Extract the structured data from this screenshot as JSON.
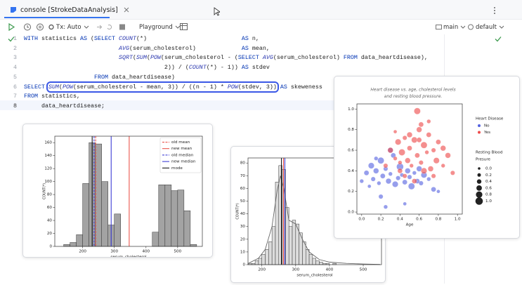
{
  "tab": {
    "title": "console [StrokeDataAnalysis]"
  },
  "toolbar": {
    "tx": "Tx: Auto",
    "schema": "Playground",
    "branch": "main",
    "connection": "default"
  },
  "editor": {
    "lines": [
      {
        "number": 1,
        "segments": [
          "WITH statistics AS (SELECT COUNT(*)                           AS n,"
        ]
      },
      {
        "number": 2,
        "segments": [
          "                           AVG(serum_cholesterol)             AS mean,"
        ]
      },
      {
        "number": 3,
        "segments": [
          "                           SQRT(SUM(POW(serum_cholesterol - (SELECT AVG(serum_cholesterol) FROM data_heartdisease),"
        ]
      },
      {
        "number": 4,
        "segments": [
          "                                        2)) / (COUNT(*) - 1)) AS stdev"
        ]
      },
      {
        "number": 5,
        "segments": [
          "                    FROM data_heartdisease)"
        ]
      },
      {
        "number": 6,
        "segments": [
          "SELECT ",
          "SUM(POW(serum_cholesterol - mean, 3)) / ((n - 1) * POW(stdev, 3))",
          " AS skeweness"
        ]
      },
      {
        "number": 7,
        "segments": [
          "FROM statistics,"
        ]
      },
      {
        "number": 8,
        "segments": [
          "     data_heartdisease;"
        ]
      }
    ]
  },
  "chart_data": [
    {
      "type": "histogram",
      "xlabel": "serum_cholesterol",
      "ylabel": "COUNT(*)",
      "color": "#a3a3a3",
      "bins": [
        140,
        160,
        180,
        200,
        220,
        240,
        260,
        280,
        300,
        320,
        340,
        360,
        380,
        400,
        420,
        440,
        460,
        480,
        500,
        520,
        540,
        560
      ],
      "values": [
        3,
        6,
        18,
        97,
        160,
        158,
        100,
        33,
        50,
        0,
        0,
        0,
        0,
        0,
        22,
        95,
        95,
        86,
        87,
        55,
        3
      ],
      "xlim": [
        112,
        578
      ],
      "ylim": [
        0,
        170
      ],
      "xticks": [
        200,
        300,
        400,
        500
      ],
      "yticks": [
        0,
        20,
        40,
        60,
        80,
        100,
        120,
        140,
        160
      ],
      "legend": "upper right",
      "lines": [
        {
          "name": "old mean",
          "color": "#e8453c",
          "dashed": true,
          "value": 241
        },
        {
          "name": "new mean",
          "color": "#e8453c",
          "dashed": false,
          "value": 347
        },
        {
          "name": "old median",
          "color": "#2a2ad0",
          "dashed": true,
          "value": 236
        },
        {
          "name": "new median",
          "color": "#2a2ad0",
          "dashed": false,
          "value": 290
        },
        {
          "name": "mode",
          "color": "#000000",
          "dashed": false,
          "value": 230
        }
      ]
    },
    {
      "type": "histogram",
      "xlabel": "serum_cholesterol",
      "ylabel": "COUNT(*)",
      "color": "#dcdcdc",
      "bins": [
        160,
        170,
        180,
        190,
        200,
        210,
        220,
        230,
        240,
        250,
        260,
        270,
        280,
        290,
        300,
        310,
        320,
        330,
        340,
        350,
        360,
        370,
        380,
        390,
        400,
        410,
        420
      ],
      "values": [
        1,
        1,
        3,
        5,
        8,
        12,
        18,
        30,
        65,
        78,
        75,
        45,
        30,
        35,
        32,
        25,
        18,
        12,
        8,
        5,
        3,
        2,
        1,
        1,
        0,
        1
      ],
      "kde": {
        "color": "#666666",
        "x": [
          160,
          190,
          210,
          230,
          245,
          255,
          265,
          280,
          300,
          320,
          340,
          370,
          400,
          450,
          500,
          550
        ],
        "y": [
          1,
          5,
          12,
          30,
          58,
          70,
          60,
          35,
          32,
          20,
          10,
          4,
          2,
          1,
          0.5,
          0.2
        ]
      },
      "xlim": [
        159,
        554
      ],
      "ylim": [
        0,
        84
      ],
      "xticks": [
        200,
        300,
        400,
        500
      ],
      "yticks": [
        0,
        10,
        20,
        30,
        40,
        50,
        60,
        70,
        80
      ],
      "lines": [
        {
          "color": "#000000",
          "value": 258
        },
        {
          "color": "#e8453c",
          "value": 264
        },
        {
          "color": "#2a2ad0",
          "value": 268
        }
      ]
    },
    {
      "type": "scatter",
      "title": [
        "Heart disease vs. age, cholesterol levels",
        "and resting blood pressure."
      ],
      "xlabel": "Age",
      "xlim": [
        -0.05,
        1.05
      ],
      "ylim": [
        -0.02,
        1.05
      ],
      "xticks": [
        {
          "value": 0,
          "label": "0.0"
        },
        0.2,
        0.4,
        0.6,
        0.8,
        {
          "value": 1,
          "label": "1.0"
        }
      ],
      "yticks": [
        {
          "value": 0,
          "label": "0.0"
        },
        0.2,
        0.4,
        0.6,
        0.8,
        {
          "value": 1,
          "label": "1.0"
        }
      ],
      "legend_title": "Heart Disease",
      "legend": "right",
      "series": [
        {
          "name": "No",
          "color": "#5563e0",
          "x": [
            0.0,
            0.05,
            0.08,
            0.1,
            0.12,
            0.15,
            0.18,
            0.2,
            0.22,
            0.25,
            0.28,
            0.3,
            0.33,
            0.35,
            0.38,
            0.4,
            0.42,
            0.45,
            0.48,
            0.5,
            0.52,
            0.55,
            0.58,
            0.6,
            0.62,
            0.65,
            0.7,
            0.75,
            0.8,
            0.2,
            0.3,
            0.15,
            0.45,
            0.25
          ],
          "y": [
            0.3,
            0.38,
            0.25,
            0.45,
            0.32,
            0.4,
            0.28,
            0.5,
            0.35,
            0.42,
            0.3,
            0.37,
            0.55,
            0.27,
            0.33,
            0.44,
            0.36,
            0.29,
            0.4,
            0.34,
            0.25,
            0.38,
            0.3,
            0.42,
            0.28,
            0.36,
            0.32,
            0.22,
            0.2,
            0.15,
            0.6,
            0.52,
            0.08,
            0.05
          ],
          "size": [
            0.3,
            0.5,
            0.2,
            0.7,
            0.4,
            0.6,
            0.3,
            0.8,
            0.5,
            0.4,
            0.6,
            0.3,
            0.5,
            0.7,
            0.4,
            0.9,
            0.3,
            0.5,
            0.6,
            0.4,
            0.8,
            0.3,
            0.5,
            0.6,
            0.4,
            0.7,
            0.3,
            0.5,
            0.2,
            0.4,
            0.6,
            0.3,
            0.2,
            0.3
          ]
        },
        {
          "name": "Yes",
          "color": "#ee4b4b",
          "x": [
            0.25,
            0.3,
            0.35,
            0.38,
            0.4,
            0.42,
            0.45,
            0.48,
            0.5,
            0.52,
            0.55,
            0.58,
            0.6,
            0.62,
            0.65,
            0.68,
            0.7,
            0.72,
            0.75,
            0.78,
            0.8,
            0.85,
            0.9,
            0.95,
            0.58,
            0.62,
            0.5,
            0.45,
            0.7,
            0.65,
            0.35,
            0.55,
            0.75,
            0.85,
            0.4,
            0.6
          ],
          "y": [
            0.45,
            0.6,
            0.52,
            0.68,
            0.4,
            0.58,
            0.72,
            0.5,
            0.62,
            0.45,
            0.7,
            0.55,
            0.8,
            0.48,
            0.65,
            0.58,
            0.75,
            0.42,
            0.6,
            0.5,
            0.68,
            0.45,
            0.55,
            0.38,
            0.98,
            0.85,
            0.75,
            0.35,
            0.88,
            0.4,
            0.78,
            0.3,
            0.35,
            0.62,
            0.48,
            0.7
          ],
          "size": [
            0.4,
            0.6,
            0.3,
            0.7,
            0.5,
            0.8,
            0.4,
            0.6,
            0.5,
            0.3,
            0.7,
            0.5,
            0.6,
            0.4,
            0.8,
            0.3,
            0.5,
            0.6,
            0.4,
            0.7,
            0.5,
            0.3,
            0.6,
            0.4,
            0.8,
            0.5,
            0.6,
            0.4,
            0.3,
            0.7,
            0.2,
            0.5,
            0.4,
            0.6,
            0.3,
            0.5
          ]
        }
      ],
      "size_legend": {
        "title": [
          "Resting Blood",
          "Presure"
        ],
        "values": [
          {
            "value": 0,
            "label": "0.0"
          },
          0.2,
          0.4,
          0.6,
          0.8,
          {
            "value": 1,
            "label": "1.0"
          }
        ]
      }
    }
  ]
}
